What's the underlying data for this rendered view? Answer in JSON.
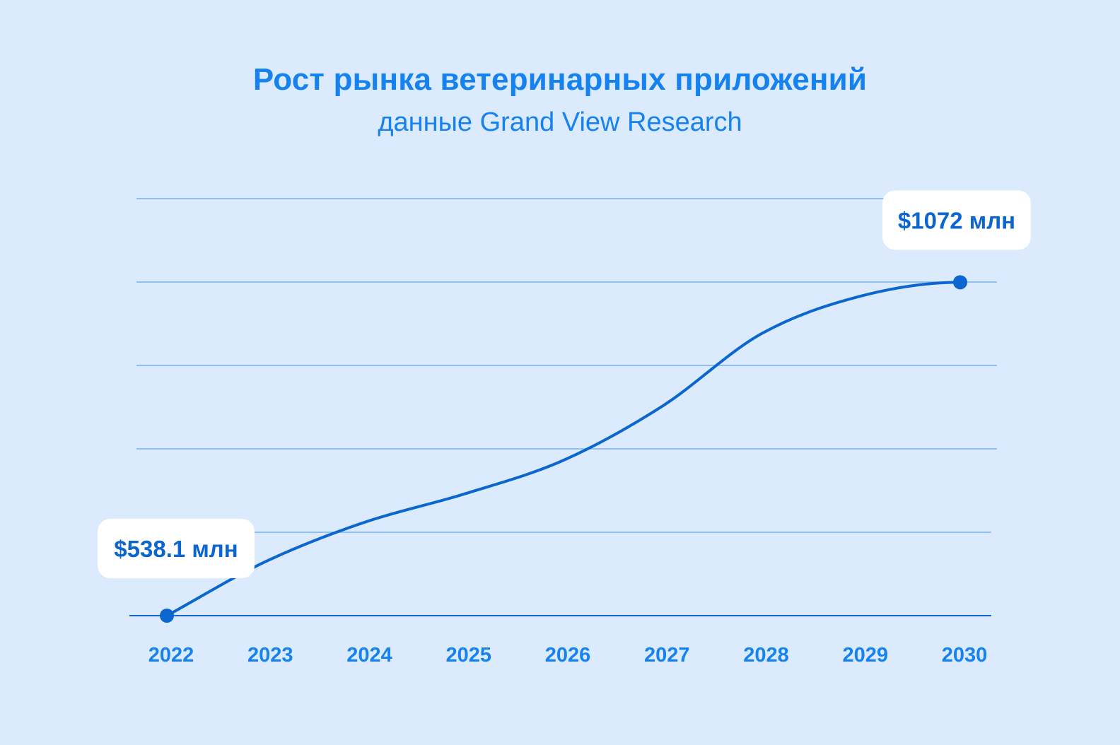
{
  "chart_data": {
    "type": "line",
    "title": "Рост рынка ветеринарных приложений",
    "subtitle": "данные Grand View Research",
    "categories": [
      "2022",
      "2023",
      "2024",
      "2025",
      "2026",
      "2027",
      "2028",
      "2029",
      "2030"
    ],
    "x": [
      2022,
      2023,
      2024,
      2025,
      2026,
      2027,
      2028,
      2029,
      2030
    ],
    "series": [
      {
        "values": [
          538.1,
          625,
          688,
          733,
          787,
          874,
          990,
          1050,
          1072
        ]
      }
    ],
    "ylim": [
      538.1,
      1206
    ],
    "grid": true,
    "legend": "none",
    "colors": {
      "line": "#0b67cf",
      "grid": "#7ab3ec",
      "text": "#1682f0",
      "callout_text": "#0b67cf",
      "callout_bg": "#ffffff",
      "background": "#dbeafd"
    },
    "annotations": [
      {
        "label": "$538.1 млн",
        "x": 2022,
        "value": 538.1,
        "placement": "above"
      },
      {
        "label": "$1072 млн",
        "x": 2030,
        "value": 1072,
        "placement": "above"
      }
    ]
  }
}
